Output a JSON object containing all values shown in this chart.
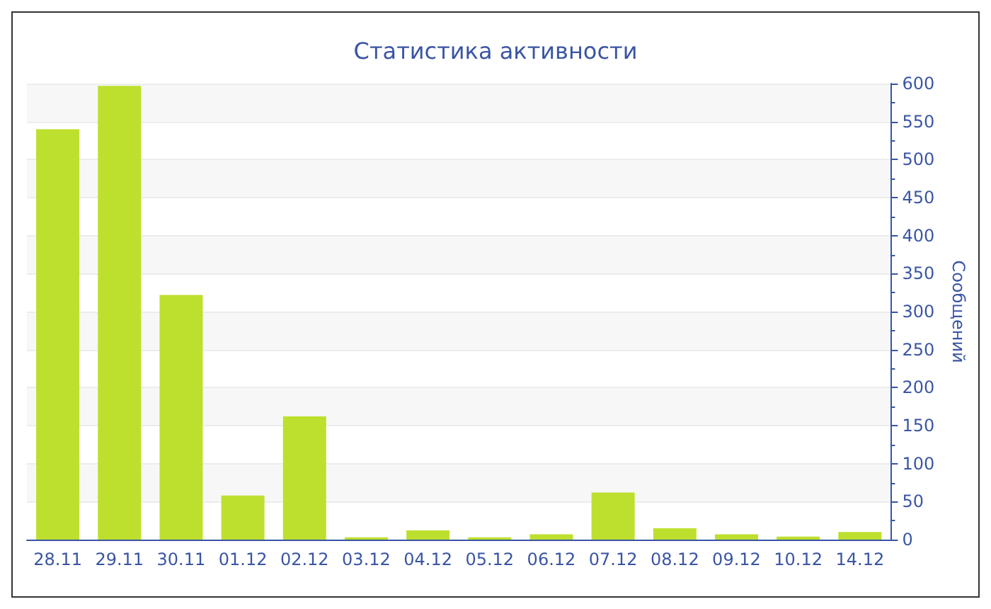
{
  "chart_data": {
    "type": "bar",
    "title": "Статистика активности",
    "ylabel": "Сообщений",
    "categories": [
      "28.11",
      "29.11",
      "30.11",
      "01.12",
      "02.12",
      "03.12",
      "04.12",
      "05.12",
      "06.12",
      "07.12",
      "08.12",
      "09.12",
      "10.12",
      "14.12"
    ],
    "values": [
      540,
      597,
      322,
      58,
      162,
      3,
      12,
      3,
      7,
      62,
      15,
      7,
      4,
      10
    ],
    "color": "#bde02e",
    "ylim": [
      0,
      600
    ],
    "yticks": [
      0,
      50,
      100,
      150,
      200,
      250,
      300,
      350,
      400,
      450,
      500,
      550,
      600
    ],
    "grid": "y"
  }
}
